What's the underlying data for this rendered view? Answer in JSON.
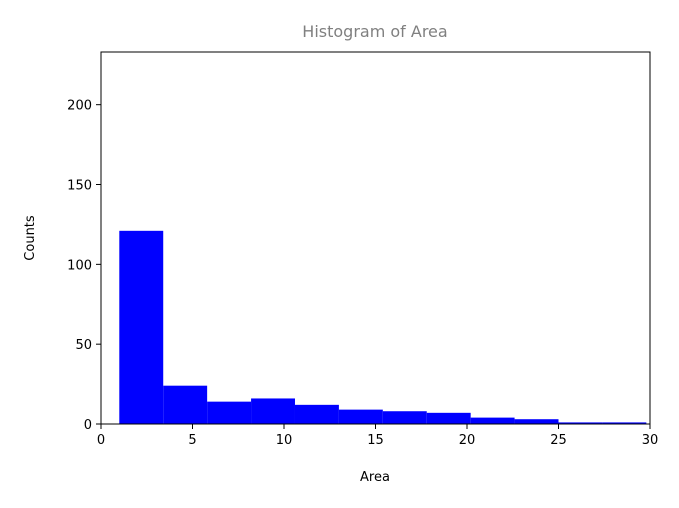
{
  "chart_data": {
    "type": "histogram",
    "title": "Histogram of Area",
    "xlabel": "Area",
    "ylabel": "Counts",
    "bins": [
      1,
      3.4,
      5.8,
      8.2,
      10.6,
      13,
      15.4,
      17.8,
      20.2,
      22.6,
      25,
      27.4,
      29.8
    ],
    "values": [
      121,
      24,
      14,
      16,
      12,
      9,
      8,
      7,
      4,
      3,
      1,
      1
    ],
    "color": "#0000ff",
    "xlim": [
      0,
      30
    ],
    "xticks": [
      0,
      5,
      10,
      15,
      20,
      25,
      30
    ],
    "ylim": [
      0,
      233
    ],
    "yticks": [
      0,
      50,
      100,
      150,
      200
    ]
  }
}
